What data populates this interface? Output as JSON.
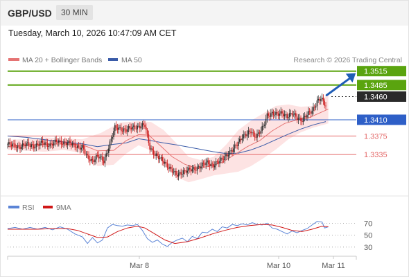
{
  "header": {
    "pair": "GBP/USD",
    "timeframe": "30 MIN"
  },
  "timestamp": "Tuesday, March 10, 2026 10:47:09 AM CET",
  "legend": {
    "ma20_label": "MA 20 + Bollinger Bands",
    "ma50_label": "MA 50",
    "credit": "Research © 2026 Trading Central",
    "rsi_label": "RSI",
    "rsi_ma_label": "9MA"
  },
  "colors": {
    "resistance": "#5aa40f",
    "support_blue": "#2e5fc7",
    "support_red": "#e46a6a",
    "current": "#2a2a2a",
    "arrow": "#1f5db6",
    "ma20": "#e57373",
    "ma50": "#3a5ba8",
    "bollinger_fill": "#fde3e3",
    "candle_up": "#333333",
    "candle_down": "#cc2020",
    "rsi": "#5b84d6",
    "rsi_ma": "#d01717"
  },
  "chart_data": [
    {
      "type": "candlestick",
      "title": "GBP/USD 30 MIN",
      "x_ticks": [
        "Mar 8",
        "Mar 10",
        "Mar 11"
      ],
      "ylim": [
        1.3265,
        1.3525
      ],
      "levels": [
        {
          "value": 1.3515,
          "label": "1.3515",
          "kind": "resistance"
        },
        {
          "value": 1.3485,
          "label": "1.3485",
          "kind": "resistance"
        },
        {
          "value": 1.346,
          "label": "1.3460",
          "kind": "current"
        },
        {
          "value": 1.341,
          "label": "1.3410",
          "kind": "support"
        },
        {
          "value": 1.3375,
          "label": "1.3375",
          "kind": "support"
        },
        {
          "value": 1.3335,
          "label": "1.3335",
          "kind": "support"
        }
      ],
      "close_path": [
        [
          0,
          1.3357
        ],
        [
          8,
          1.3352
        ],
        [
          15,
          1.3356
        ],
        [
          22,
          1.3354
        ],
        [
          28,
          1.336
        ],
        [
          34,
          1.3356
        ],
        [
          40,
          1.3363
        ],
        [
          48,
          1.336
        ],
        [
          54,
          1.3354
        ],
        [
          60,
          1.335
        ],
        [
          64,
          1.3328
        ],
        [
          68,
          1.3322
        ],
        [
          72,
          1.3332
        ],
        [
          77,
          1.332
        ],
        [
          82,
          1.336
        ],
        [
          86,
          1.3392
        ],
        [
          90,
          1.3391
        ],
        [
          95,
          1.3388
        ],
        [
          100,
          1.3393
        ],
        [
          105,
          1.3396
        ],
        [
          110,
          1.3397
        ],
        [
          114,
          1.3351
        ],
        [
          118,
          1.3335
        ],
        [
          122,
          1.3325
        ],
        [
          126,
          1.3318
        ],
        [
          130,
          1.3305
        ],
        [
          135,
          1.329
        ],
        [
          140,
          1.3298
        ],
        [
          145,
          1.33
        ],
        [
          150,
          1.3305
        ],
        [
          155,
          1.331
        ],
        [
          160,
          1.3318
        ],
        [
          165,
          1.3312
        ],
        [
          170,
          1.332
        ],
        [
          175,
          1.3334
        ],
        [
          180,
          1.3343
        ],
        [
          184,
          1.3358
        ],
        [
          188,
          1.3375
        ],
        [
          192,
          1.3378
        ],
        [
          195,
          1.3385
        ],
        [
          198,
          1.3376
        ],
        [
          201,
          1.338
        ],
        [
          205,
          1.3394
        ],
        [
          208,
          1.342
        ],
        [
          212,
          1.3425
        ],
        [
          216,
          1.342
        ],
        [
          220,
          1.3425
        ],
        [
          224,
          1.3418
        ],
        [
          228,
          1.3422
        ],
        [
          232,
          1.3415
        ],
        [
          236,
          1.341
        ],
        [
          240,
          1.342
        ],
        [
          244,
          1.343
        ],
        [
          248,
          1.345
        ],
        [
          251,
          1.3455
        ],
        [
          253,
          1.3448
        ],
        [
          255,
          1.344
        ]
      ],
      "ma20": [
        [
          0,
          1.3352
        ],
        [
          15,
          1.3356
        ],
        [
          30,
          1.3357
        ],
        [
          45,
          1.3358
        ],
        [
          60,
          1.3356
        ],
        [
          72,
          1.3343
        ],
        [
          85,
          1.3344
        ],
        [
          95,
          1.3365
        ],
        [
          105,
          1.3378
        ],
        [
          113,
          1.3377
        ],
        [
          122,
          1.3355
        ],
        [
          132,
          1.333
        ],
        [
          142,
          1.3314
        ],
        [
          152,
          1.3305
        ],
        [
          162,
          1.331
        ],
        [
          172,
          1.3318
        ],
        [
          182,
          1.3335
        ],
        [
          192,
          1.3352
        ],
        [
          202,
          1.3365
        ],
        [
          212,
          1.3386
        ],
        [
          222,
          1.3402
        ],
        [
          232,
          1.341
        ],
        [
          242,
          1.3415
        ],
        [
          252,
          1.3427
        ],
        [
          257,
          1.3433
        ]
      ],
      "ma50": [
        [
          0,
          1.3375
        ],
        [
          15,
          1.3372
        ],
        [
          30,
          1.3367
        ],
        [
          45,
          1.3362
        ],
        [
          60,
          1.3358
        ],
        [
          72,
          1.3352
        ],
        [
          85,
          1.3357
        ],
        [
          95,
          1.336
        ],
        [
          105,
          1.3369
        ],
        [
          115,
          1.3365
        ],
        [
          125,
          1.336
        ],
        [
          135,
          1.3356
        ],
        [
          145,
          1.3351
        ],
        [
          155,
          1.3346
        ],
        [
          165,
          1.3341
        ],
        [
          175,
          1.3337
        ],
        [
          185,
          1.3338
        ],
        [
          195,
          1.3345
        ],
        [
          205,
          1.3355
        ],
        [
          215,
          1.3367
        ],
        [
          225,
          1.3379
        ],
        [
          235,
          1.339
        ],
        [
          245,
          1.3399
        ],
        [
          255,
          1.3406
        ]
      ],
      "bollinger_upper": [
        [
          0,
          1.3367
        ],
        [
          15,
          1.3368
        ],
        [
          30,
          1.3372
        ],
        [
          45,
          1.337
        ],
        [
          60,
          1.3368
        ],
        [
          75,
          1.3382
        ],
        [
          90,
          1.3404
        ],
        [
          105,
          1.3407
        ],
        [
          115,
          1.3405
        ],
        [
          125,
          1.3388
        ],
        [
          135,
          1.336
        ],
        [
          145,
          1.333
        ],
        [
          155,
          1.3323
        ],
        [
          165,
          1.333
        ],
        [
          175,
          1.3356
        ],
        [
          185,
          1.3388
        ],
        [
          195,
          1.3408
        ],
        [
          205,
          1.3424
        ],
        [
          215,
          1.344
        ],
        [
          225,
          1.3443
        ],
        [
          235,
          1.3438
        ],
        [
          245,
          1.344
        ],
        [
          257,
          1.3465
        ]
      ],
      "bollinger_lower": [
        [
          0,
          1.3345
        ],
        [
          15,
          1.3343
        ],
        [
          30,
          1.3341
        ],
        [
          45,
          1.3345
        ],
        [
          60,
          1.3338
        ],
        [
          72,
          1.331
        ],
        [
          85,
          1.3313
        ],
        [
          95,
          1.3337
        ],
        [
          105,
          1.3355
        ],
        [
          115,
          1.3343
        ],
        [
          125,
          1.3317
        ],
        [
          135,
          1.3287
        ],
        [
          145,
          1.3275
        ],
        [
          155,
          1.3282
        ],
        [
          165,
          1.329
        ],
        [
          175,
          1.3294
        ],
        [
          185,
          1.3298
        ],
        [
          195,
          1.331
        ],
        [
          205,
          1.3327
        ],
        [
          215,
          1.3346
        ],
        [
          225,
          1.3368
        ],
        [
          235,
          1.3383
        ],
        [
          245,
          1.3393
        ],
        [
          257,
          1.3402
        ]
      ],
      "forecast_arrow": {
        "from": [
          254,
          1.346
        ],
        "to": [
          280,
          1.351
        ]
      }
    },
    {
      "type": "line",
      "title": "RSI",
      "y_ticks": [
        70,
        50,
        30
      ],
      "ylim": [
        17,
        82
      ],
      "series": [
        {
          "name": "RSI",
          "values": [
            [
              0,
              61
            ],
            [
              6,
              63
            ],
            [
              12,
              60
            ],
            [
              18,
              63
            ],
            [
              24,
              60
            ],
            [
              30,
              63
            ],
            [
              36,
              59
            ],
            [
              42,
              64
            ],
            [
              48,
              60
            ],
            [
              54,
              52
            ],
            [
              60,
              47
            ],
            [
              64,
              36
            ],
            [
              68,
              46
            ],
            [
              72,
              37
            ],
            [
              76,
              42
            ],
            [
              80,
              62
            ],
            [
              84,
              68
            ],
            [
              88,
              66
            ],
            [
              92,
              65
            ],
            [
              96,
              67
            ],
            [
              100,
              66
            ],
            [
              104,
              68
            ],
            [
              108,
              58
            ],
            [
              112,
              44
            ],
            [
              116,
              38
            ],
            [
              120,
              42
            ],
            [
              124,
              35
            ],
            [
              128,
              31
            ],
            [
              132,
              38
            ],
            [
              136,
              42
            ],
            [
              140,
              45
            ],
            [
              144,
              39
            ],
            [
              148,
              48
            ],
            [
              152,
              44
            ],
            [
              156,
              55
            ],
            [
              160,
              54
            ],
            [
              164,
              60
            ],
            [
              168,
              56
            ],
            [
              172,
              64
            ],
            [
              176,
              62
            ],
            [
              180,
              68
            ],
            [
              184,
              66
            ],
            [
              188,
              69
            ],
            [
              192,
              67
            ],
            [
              196,
              71
            ],
            [
              200,
              68
            ],
            [
              204,
              67
            ],
            [
              208,
              70
            ],
            [
              212,
              62
            ],
            [
              216,
              60
            ],
            [
              220,
              56
            ],
            [
              224,
              52
            ],
            [
              228,
              57
            ],
            [
              232,
              54
            ],
            [
              236,
              58
            ],
            [
              240,
              61
            ],
            [
              244,
              67
            ],
            [
              248,
              73
            ],
            [
              252,
              72
            ],
            [
              254,
              62
            ],
            [
              257,
              64
            ]
          ]
        },
        {
          "name": "9MA",
          "values": [
            [
              0,
              60
            ],
            [
              12,
              60
            ],
            [
              24,
              60
            ],
            [
              36,
              61
            ],
            [
              48,
              61
            ],
            [
              56,
              58
            ],
            [
              64,
              52
            ],
            [
              72,
              46
            ],
            [
              80,
              47
            ],
            [
              88,
              56
            ],
            [
              96,
              62
            ],
            [
              104,
              65
            ],
            [
              110,
              62
            ],
            [
              118,
              52
            ],
            [
              126,
              42
            ],
            [
              134,
              36
            ],
            [
              144,
              39
            ],
            [
              154,
              45
            ],
            [
              164,
              52
            ],
            [
              174,
              58
            ],
            [
              184,
              63
            ],
            [
              194,
              66
            ],
            [
              204,
              68
            ],
            [
              212,
              67
            ],
            [
              220,
              63
            ],
            [
              228,
              58
            ],
            [
              236,
              56
            ],
            [
              244,
              60
            ],
            [
              252,
              65
            ],
            [
              257,
              64
            ]
          ]
        }
      ]
    }
  ]
}
